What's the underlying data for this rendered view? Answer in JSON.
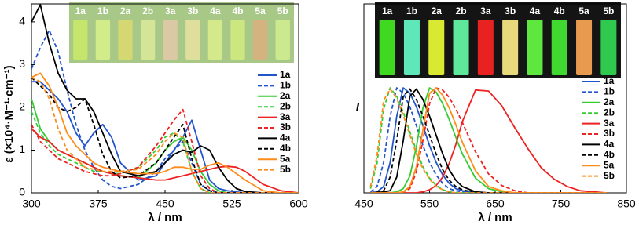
{
  "chart_data": [
    {
      "type": "line",
      "x_label": "λ / nm",
      "y_label": "ε (×10⁴·M⁻¹·cm⁻¹)",
      "xlim": [
        300,
        600
      ],
      "xticks": [
        300,
        375,
        450,
        525,
        600
      ],
      "ylim": [
        0,
        4.42
      ],
      "yticks": [
        0,
        1,
        2,
        3,
        4
      ],
      "x": [
        300,
        310,
        320,
        330,
        340,
        350,
        360,
        370,
        380,
        390,
        400,
        420,
        440,
        450,
        460,
        470,
        480,
        490,
        500,
        510,
        520,
        530,
        540,
        560,
        580,
        600
      ],
      "photo": {
        "labels": [
          "1a",
          "1b",
          "2a",
          "2b",
          "3a",
          "3b",
          "4a",
          "4b",
          "5a",
          "5b"
        ],
        "colors": [
          "#c8e86a",
          "#d6f08a",
          "#d8d870",
          "#d8e89a",
          "#e0c8a8",
          "#e6e0a0",
          "#d8ec8a",
          "#d0ea80",
          "#d8b080",
          "#d0ec90"
        ],
        "background": "#a8c888"
      },
      "series": [
        {
          "name": "1a",
          "color": "#2255cc",
          "dash": false,
          "values": [
            2.6,
            2.6,
            2.4,
            2.2,
            1.9,
            1.4,
            1.1,
            1.4,
            1.6,
            1.3,
            0.7,
            0.3,
            0.4,
            0.7,
            1.0,
            1.3,
            1.7,
            1.0,
            0.3,
            0.1,
            0.05,
            0.02,
            0,
            0,
            0,
            0
          ]
        },
        {
          "name": "1b",
          "color": "#2255cc",
          "dash": true,
          "values": [
            2.9,
            3.4,
            3.8,
            3.3,
            2.4,
            1.6,
            1.0,
            0.6,
            0.3,
            0.15,
            0.1,
            0.2,
            0.5,
            0.8,
            1.0,
            1.2,
            0.7,
            0.2,
            0.05,
            0,
            0,
            0,
            0,
            0,
            0,
            0
          ]
        },
        {
          "name": "2a",
          "color": "#33cc33",
          "dash": false,
          "values": [
            2.2,
            1.5,
            1.2,
            1.0,
            0.9,
            0.8,
            0.7,
            0.6,
            0.5,
            0.45,
            0.4,
            0.35,
            0.7,
            1.0,
            1.2,
            1.3,
            1.0,
            0.5,
            0.2,
            0.05,
            0,
            0,
            0,
            0,
            0,
            0
          ]
        },
        {
          "name": "2b",
          "color": "#33cc33",
          "dash": true,
          "values": [
            1.9,
            1.4,
            1.1,
            0.9,
            0.8,
            0.7,
            0.6,
            0.5,
            0.5,
            0.45,
            0.45,
            0.6,
            1.0,
            1.3,
            1.4,
            1.2,
            0.5,
            0.1,
            0,
            0,
            0,
            0,
            0,
            0,
            0,
            0
          ]
        },
        {
          "name": "3a",
          "color": "#ee2222",
          "dash": false,
          "values": [
            1.5,
            1.3,
            1.2,
            1.0,
            0.9,
            0.8,
            0.7,
            0.6,
            0.5,
            0.45,
            0.4,
            0.35,
            0.3,
            0.3,
            0.35,
            0.4,
            0.45,
            0.5,
            0.55,
            0.6,
            0.62,
            0.6,
            0.5,
            0.2,
            0.05,
            0
          ]
        },
        {
          "name": "3b",
          "color": "#ee2222",
          "dash": true,
          "values": [
            1.6,
            1.2,
            1.0,
            0.8,
            0.7,
            0.6,
            0.5,
            0.45,
            0.4,
            0.4,
            0.45,
            0.6,
            1.1,
            1.4,
            1.7,
            1.95,
            1.2,
            0.4,
            0.1,
            0,
            0,
            0,
            0,
            0,
            0,
            0
          ]
        },
        {
          "name": "4a",
          "color": "#000000",
          "dash": false,
          "values": [
            4.0,
            4.4,
            3.5,
            2.8,
            2.4,
            2.2,
            2.2,
            1.9,
            1.4,
            0.9,
            0.5,
            0.4,
            0.5,
            0.7,
            0.9,
            1.0,
            0.95,
            1.1,
            1.0,
            0.6,
            0.3,
            0.1,
            0.03,
            0,
            0,
            0
          ]
        },
        {
          "name": "4b",
          "color": "#000000",
          "dash": true,
          "values": [
            2.7,
            2.5,
            2.3,
            2.0,
            1.9,
            2.0,
            2.2,
            1.6,
            0.9,
            0.5,
            0.35,
            0.4,
            0.7,
            1.0,
            1.3,
            1.6,
            0.8,
            0.2,
            0.05,
            0,
            0,
            0,
            0,
            0,
            0,
            0
          ]
        },
        {
          "name": "5a",
          "color": "#ff8c1a",
          "dash": false,
          "values": [
            2.7,
            2.8,
            2.5,
            2.0,
            1.4,
            1.1,
            0.9,
            0.7,
            0.6,
            0.55,
            0.5,
            0.45,
            0.45,
            0.5,
            0.6,
            0.6,
            0.55,
            0.55,
            0.65,
            0.7,
            0.6,
            0.45,
            0.3,
            0.05,
            0,
            0
          ]
        },
        {
          "name": "5b",
          "color": "#ff8c1a",
          "dash": true,
          "values": [
            2.7,
            2.6,
            2.2,
            1.5,
            1.0,
            0.8,
            0.6,
            0.55,
            0.5,
            0.5,
            0.5,
            0.55,
            0.9,
            1.2,
            1.4,
            1.3,
            0.5,
            0.1,
            0,
            0,
            0,
            0,
            0,
            0,
            0,
            0
          ]
        }
      ]
    },
    {
      "type": "line",
      "x_label": "λ / nm",
      "y_label": "I",
      "xlim": [
        450,
        850
      ],
      "xticks": [
        450,
        550,
        650,
        750,
        850
      ],
      "ylim": [
        0,
        1.8
      ],
      "x": [
        460,
        470,
        480,
        490,
        500,
        510,
        520,
        530,
        540,
        550,
        560,
        570,
        580,
        590,
        600,
        620,
        640,
        660,
        680,
        700,
        720,
        740,
        760,
        780,
        800,
        820
      ],
      "photo": {
        "labels": [
          "1a",
          "1b",
          "2a",
          "2b",
          "3a",
          "3b",
          "4a",
          "4b",
          "5a",
          "5b"
        ],
        "colors": [
          "#44ee22",
          "#66ffcc",
          "#eeff33",
          "#66ffaa",
          "#ff2222",
          "#ffee88",
          "#66ff44",
          "#44ee33",
          "#ffaa55",
          "#33dd55"
        ],
        "background": "#141414"
      },
      "series": [
        {
          "name": "1a",
          "color": "#2255cc",
          "dash": false,
          "values": [
            0,
            0.01,
            0.06,
            0.29,
            0.73,
            1,
            0.95,
            0.82,
            0.64,
            0.45,
            0.29,
            0.17,
            0.09,
            0.04,
            0.02,
            0,
            0,
            0,
            0,
            0,
            0,
            0,
            0,
            0,
            0,
            0
          ]
        },
        {
          "name": "1b",
          "color": "#2255cc",
          "dash": true,
          "values": [
            0.01,
            0.06,
            0.29,
            0.73,
            1,
            0.95,
            0.82,
            0.64,
            0.45,
            0.29,
            0.17,
            0.09,
            0.04,
            0.02,
            0.01,
            0,
            0,
            0,
            0,
            0,
            0,
            0,
            0,
            0,
            0,
            0
          ]
        },
        {
          "name": "2a",
          "color": "#33cc33",
          "dash": false,
          "values": [
            0,
            0,
            0,
            0,
            0.01,
            0.04,
            0.16,
            0.44,
            0.81,
            1,
            0.96,
            0.85,
            0.7,
            0.53,
            0.37,
            0.14,
            0.04,
            0.01,
            0,
            0,
            0,
            0,
            0,
            0,
            0,
            0
          ]
        },
        {
          "name": "2b",
          "color": "#33cc33",
          "dash": true,
          "values": [
            0.04,
            0.28,
            0.8,
            1,
            0.92,
            0.77,
            0.58,
            0.4,
            0.25,
            0.14,
            0.07,
            0.03,
            0.01,
            0,
            0,
            0,
            0,
            0,
            0,
            0,
            0,
            0,
            0,
            0,
            0,
            0
          ]
        },
        {
          "name": "3a",
          "color": "#ee2222",
          "dash": false,
          "values": [
            0,
            0,
            0,
            0,
            0,
            0,
            0,
            0,
            0.01,
            0.03,
            0.07,
            0.15,
            0.28,
            0.46,
            0.68,
            0.98,
            0.97,
            0.83,
            0.62,
            0.42,
            0.24,
            0.13,
            0.06,
            0.02,
            0.01,
            0
          ]
        },
        {
          "name": "3b",
          "color": "#ee2222",
          "dash": true,
          "values": [
            0,
            0,
            0,
            0,
            0,
            0.01,
            0.04,
            0.2,
            0.5,
            0.85,
            1,
            0.98,
            0.91,
            0.8,
            0.67,
            0.39,
            0.18,
            0.07,
            0.02,
            0,
            0,
            0,
            0,
            0,
            0,
            0
          ]
        },
        {
          "name": "4a",
          "color": "#000000",
          "dash": false,
          "values": [
            0,
            0,
            0.01,
            0.02,
            0.15,
            0.5,
            0.92,
            0.99,
            0.89,
            0.73,
            0.55,
            0.37,
            0.22,
            0.12,
            0.06,
            0.01,
            0,
            0,
            0,
            0,
            0,
            0,
            0,
            0,
            0,
            0
          ]
        },
        {
          "name": "4b",
          "color": "#000000",
          "dash": true,
          "values": [
            0,
            0.01,
            0.02,
            0.15,
            0.5,
            0.92,
            0.99,
            0.89,
            0.73,
            0.55,
            0.37,
            0.22,
            0.12,
            0.06,
            0.03,
            0,
            0,
            0,
            0,
            0,
            0,
            0,
            0,
            0,
            0,
            0
          ]
        },
        {
          "name": "5a",
          "color": "#ff8c1a",
          "dash": false,
          "values": [
            0,
            0,
            0,
            0,
            0,
            0.01,
            0.06,
            0.25,
            0.6,
            0.95,
            1,
            0.93,
            0.81,
            0.65,
            0.48,
            0.21,
            0.06,
            0.02,
            0,
            0,
            0,
            0,
            0,
            0,
            0,
            0
          ]
        },
        {
          "name": "5b",
          "color": "#ff8c1a",
          "dash": true,
          "values": [
            0.06,
            0.35,
            0.88,
            0.99,
            0.9,
            0.74,
            0.55,
            0.37,
            0.23,
            0.13,
            0.06,
            0.03,
            0.01,
            0,
            0,
            0,
            0,
            0,
            0,
            0,
            0,
            0,
            0,
            0,
            0,
            0
          ]
        }
      ]
    }
  ]
}
